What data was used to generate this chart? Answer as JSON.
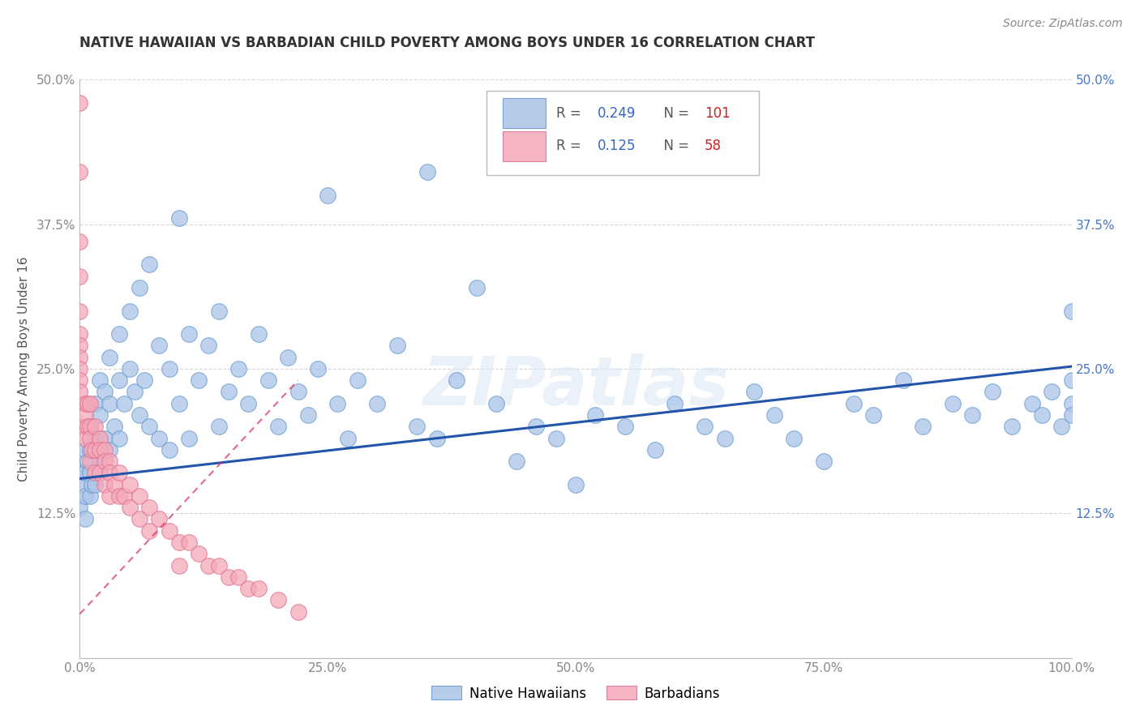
{
  "title": "NATIVE HAWAIIAN VS BARBADIAN CHILD POVERTY AMONG BOYS UNDER 16 CORRELATION CHART",
  "source": "Source: ZipAtlas.com",
  "ylabel": "Child Poverty Among Boys Under 16",
  "watermark": "ZIPatlas",
  "xlim": [
    0.0,
    1.0
  ],
  "ylim": [
    0.0,
    0.5
  ],
  "xticks": [
    0.0,
    0.25,
    0.5,
    0.75,
    1.0
  ],
  "yticks": [
    0.0,
    0.125,
    0.25,
    0.375,
    0.5
  ],
  "color_blue": "#aac4e8",
  "color_blue_edge": "#6699cc",
  "color_pink": "#f4a8b8",
  "color_pink_edge": "#e07090",
  "color_line_blue": "#2255aa",
  "color_line_pink": "#dd3366",
  "color_grid": "#cccccc",
  "background": "#ffffff",
  "nh_x": [
    0.0,
    0.0,
    0.0,
    0.005,
    0.005,
    0.005,
    0.005,
    0.008,
    0.01,
    0.01,
    0.01,
    0.01,
    0.012,
    0.015,
    0.015,
    0.015,
    0.02,
    0.02,
    0.02,
    0.025,
    0.025,
    0.03,
    0.03,
    0.03,
    0.035,
    0.04,
    0.04,
    0.04,
    0.045,
    0.05,
    0.05,
    0.055,
    0.06,
    0.06,
    0.065,
    0.07,
    0.07,
    0.08,
    0.08,
    0.09,
    0.09,
    0.1,
    0.1,
    0.11,
    0.11,
    0.12,
    0.13,
    0.14,
    0.14,
    0.15,
    0.16,
    0.17,
    0.18,
    0.19,
    0.2,
    0.21,
    0.22,
    0.23,
    0.24,
    0.25,
    0.26,
    0.27,
    0.28,
    0.3,
    0.32,
    0.34,
    0.35,
    0.36,
    0.38,
    0.4,
    0.42,
    0.44,
    0.46,
    0.48,
    0.5,
    0.52,
    0.55,
    0.58,
    0.6,
    0.63,
    0.65,
    0.68,
    0.7,
    0.72,
    0.75,
    0.78,
    0.8,
    0.83,
    0.85,
    0.88,
    0.9,
    0.92,
    0.94,
    0.96,
    0.97,
    0.98,
    0.99,
    1.0,
    1.0,
    1.0,
    1.0
  ],
  "nh_y": [
    0.16,
    0.15,
    0.13,
    0.18,
    0.16,
    0.14,
    0.12,
    0.17,
    0.2,
    0.18,
    0.16,
    0.14,
    0.15,
    0.22,
    0.19,
    0.15,
    0.24,
    0.21,
    0.17,
    0.23,
    0.19,
    0.26,
    0.22,
    0.18,
    0.2,
    0.28,
    0.24,
    0.19,
    0.22,
    0.3,
    0.25,
    0.23,
    0.32,
    0.21,
    0.24,
    0.34,
    0.2,
    0.27,
    0.19,
    0.25,
    0.18,
    0.38,
    0.22,
    0.28,
    0.19,
    0.24,
    0.27,
    0.3,
    0.2,
    0.23,
    0.25,
    0.22,
    0.28,
    0.24,
    0.2,
    0.26,
    0.23,
    0.21,
    0.25,
    0.4,
    0.22,
    0.19,
    0.24,
    0.22,
    0.27,
    0.2,
    0.42,
    0.19,
    0.24,
    0.32,
    0.22,
    0.17,
    0.2,
    0.19,
    0.15,
    0.21,
    0.2,
    0.18,
    0.22,
    0.2,
    0.19,
    0.23,
    0.21,
    0.19,
    0.17,
    0.22,
    0.21,
    0.24,
    0.2,
    0.22,
    0.21,
    0.23,
    0.2,
    0.22,
    0.21,
    0.23,
    0.2,
    0.22,
    0.21,
    0.24,
    0.3
  ],
  "bb_x": [
    0.0,
    0.0,
    0.0,
    0.0,
    0.0,
    0.0,
    0.0,
    0.0,
    0.0,
    0.0,
    0.0,
    0.0,
    0.005,
    0.005,
    0.005,
    0.008,
    0.008,
    0.01,
    0.01,
    0.01,
    0.01,
    0.012,
    0.015,
    0.015,
    0.015,
    0.02,
    0.02,
    0.02,
    0.025,
    0.025,
    0.025,
    0.03,
    0.03,
    0.03,
    0.035,
    0.04,
    0.04,
    0.045,
    0.05,
    0.05,
    0.06,
    0.06,
    0.07,
    0.07,
    0.08,
    0.09,
    0.1,
    0.1,
    0.11,
    0.12,
    0.13,
    0.14,
    0.15,
    0.16,
    0.17,
    0.18,
    0.2,
    0.22
  ],
  "bb_y": [
    0.48,
    0.42,
    0.36,
    0.33,
    0.3,
    0.28,
    0.27,
    0.26,
    0.25,
    0.24,
    0.23,
    0.2,
    0.22,
    0.21,
    0.19,
    0.22,
    0.2,
    0.22,
    0.2,
    0.19,
    0.17,
    0.18,
    0.2,
    0.18,
    0.16,
    0.19,
    0.18,
    0.16,
    0.18,
    0.17,
    0.15,
    0.17,
    0.16,
    0.14,
    0.15,
    0.16,
    0.14,
    0.14,
    0.15,
    0.13,
    0.14,
    0.12,
    0.13,
    0.11,
    0.12,
    0.11,
    0.1,
    0.08,
    0.1,
    0.09,
    0.08,
    0.08,
    0.07,
    0.07,
    0.06,
    0.06,
    0.05,
    0.04
  ],
  "nh_line_x0": 0.0,
  "nh_line_x1": 1.0,
  "nh_line_y0": 0.155,
  "nh_line_y1": 0.252,
  "bb_line_x0": 0.0,
  "bb_line_x1": 0.22,
  "bb_line_y0": 0.038,
  "bb_line_y1": 0.24
}
